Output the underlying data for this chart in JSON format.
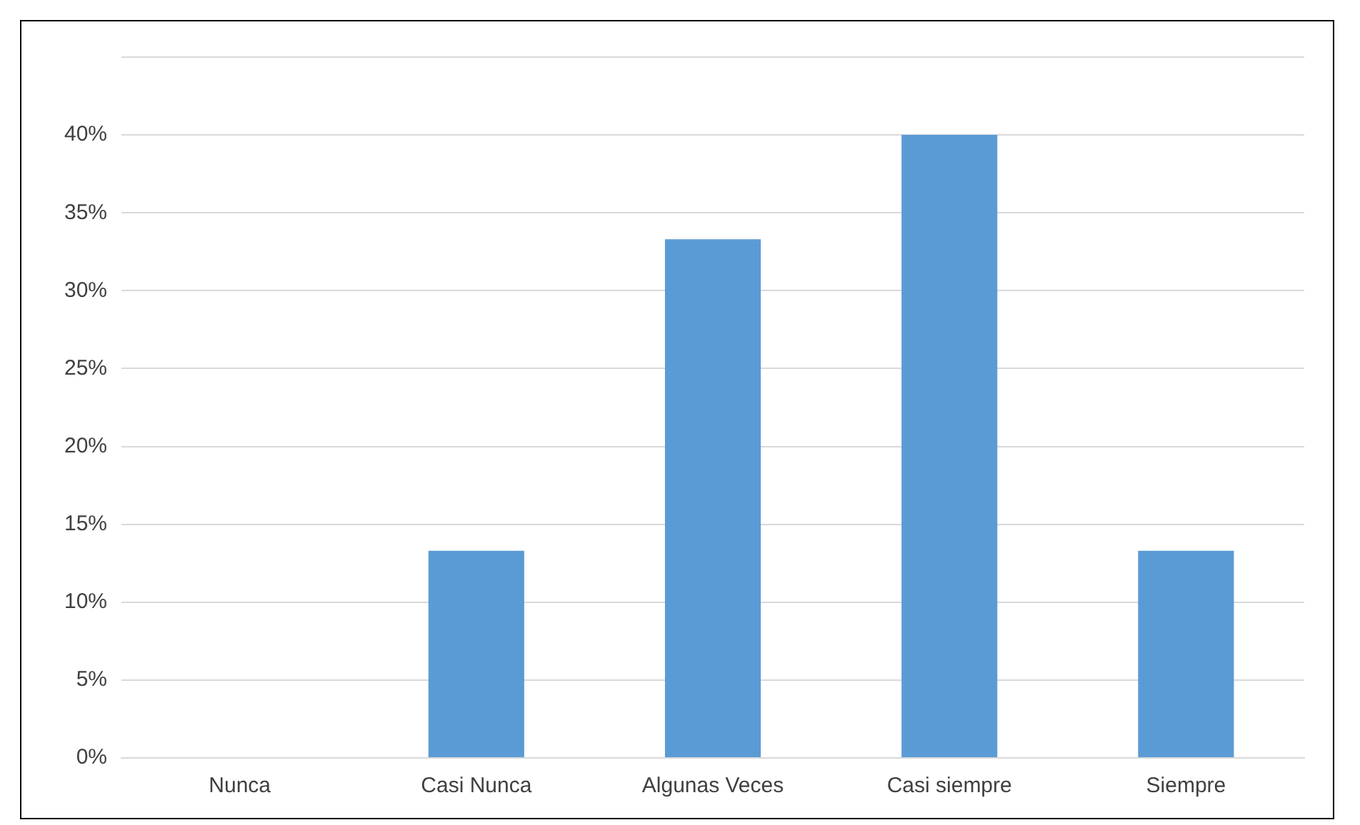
{
  "chart_data": {
    "type": "bar",
    "categories": [
      "Nunca",
      "Casi Nunca",
      "Algunas Veces",
      "Casi siempre",
      "Siempre"
    ],
    "values": [
      0,
      13.3,
      33.3,
      40,
      13.3
    ],
    "color": "#5b9bd5",
    "ylim": [
      0,
      45
    ],
    "yticks": [
      {
        "value": 0,
        "label": "0%"
      },
      {
        "value": 5,
        "label": "5%"
      },
      {
        "value": 10,
        "label": "10%"
      },
      {
        "value": 15,
        "label": "15%"
      },
      {
        "value": 20,
        "label": "20%"
      },
      {
        "value": 25,
        "label": "25%"
      },
      {
        "value": 30,
        "label": "30%"
      },
      {
        "value": 35,
        "label": "35%"
      },
      {
        "value": 40,
        "label": "40%"
      },
      {
        "value": 45,
        "label": null
      }
    ],
    "grid": "y",
    "legend": false
  }
}
